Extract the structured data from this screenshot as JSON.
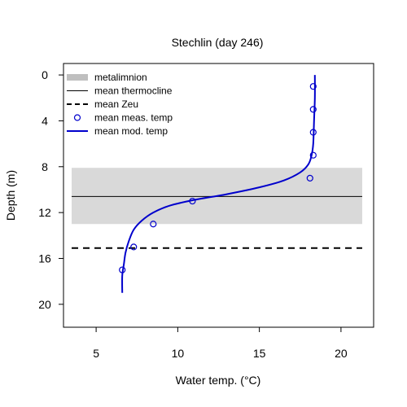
{
  "chart_data": {
    "type": "line",
    "title": "Stechlin (day 246)",
    "xlabel": "Water temp. (°C)",
    "ylabel": "Depth (m)",
    "xlim": [
      3,
      22
    ],
    "ylim": [
      22,
      -1
    ],
    "y_reversed": true,
    "x_ticks": [
      5,
      10,
      15,
      20
    ],
    "y_ticks": [
      0,
      4,
      8,
      12,
      16,
      20
    ],
    "grid": false,
    "legend_position": "top-left",
    "legend": [
      {
        "label": "metalimnion",
        "style": "band"
      },
      {
        "label": "mean thermocline",
        "style": "line"
      },
      {
        "label": "mean Zeu",
        "style": "dashed"
      },
      {
        "label": "mean meas. temp",
        "style": "point"
      },
      {
        "label": "mean mod. temp",
        "style": "line"
      }
    ],
    "metalimnion": {
      "top": 8.1,
      "bottom": 13.0,
      "x_start": 3.5,
      "x_end": 21.3
    },
    "thermocline_depth": 10.6,
    "zeu_depth": 15.1,
    "reference_lines_x": [
      3.5,
      21.3
    ],
    "measured": [
      {
        "temp": 18.3,
        "depth": 1.0
      },
      {
        "temp": 18.3,
        "depth": 3.0
      },
      {
        "temp": 18.3,
        "depth": 5.0
      },
      {
        "temp": 18.3,
        "depth": 7.0
      },
      {
        "temp": 18.1,
        "depth": 9.0
      },
      {
        "temp": 10.9,
        "depth": 11.0
      },
      {
        "temp": 8.5,
        "depth": 13.0
      },
      {
        "temp": 7.3,
        "depth": 15.0
      },
      {
        "temp": 6.6,
        "depth": 17.0
      }
    ],
    "modeled": [
      {
        "temp": 18.4,
        "depth": 0.0
      },
      {
        "temp": 18.4,
        "depth": 2.0
      },
      {
        "temp": 18.35,
        "depth": 4.0
      },
      {
        "temp": 18.3,
        "depth": 6.0
      },
      {
        "temp": 18.2,
        "depth": 7.0
      },
      {
        "temp": 18.0,
        "depth": 7.8
      },
      {
        "temp": 17.5,
        "depth": 8.5
      },
      {
        "temp": 16.5,
        "depth": 9.2
      },
      {
        "temp": 15.0,
        "depth": 9.8
      },
      {
        "temp": 13.0,
        "depth": 10.4
      },
      {
        "temp": 11.0,
        "depth": 10.9
      },
      {
        "temp": 9.5,
        "depth": 11.4
      },
      {
        "temp": 8.5,
        "depth": 12.0
      },
      {
        "temp": 7.8,
        "depth": 12.7
      },
      {
        "temp": 7.3,
        "depth": 13.5
      },
      {
        "temp": 7.0,
        "depth": 14.5
      },
      {
        "temp": 6.8,
        "depth": 15.5
      },
      {
        "temp": 6.7,
        "depth": 16.5
      },
      {
        "temp": 6.6,
        "depth": 17.5
      },
      {
        "temp": 6.6,
        "depth": 19.0
      }
    ],
    "colors": {
      "metalimnion": "#d9d9d9",
      "thermocline": "#000000",
      "zeu": "#000000",
      "measured": "#0000cc",
      "modeled": "#0000cc",
      "legend_band": "#bfbfbf"
    }
  }
}
